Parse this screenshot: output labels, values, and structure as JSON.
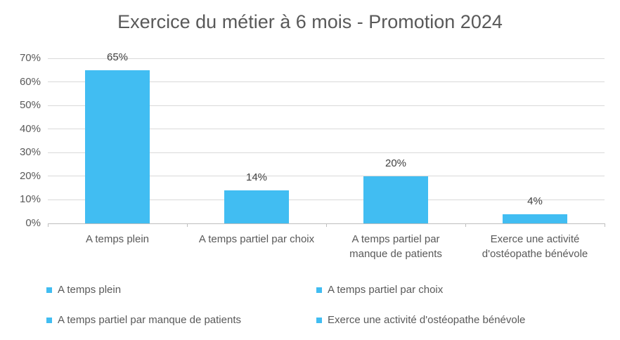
{
  "chart_data": {
    "type": "bar",
    "title": "Exercice du métier à 6 mois - Promotion 2024",
    "categories": [
      "A temps plein",
      "A temps partiel par choix",
      "A temps partiel par manque de patients",
      "Exerce une activité d'ostéopathe bénévole"
    ],
    "values": [
      65,
      14,
      20,
      4
    ],
    "value_labels": [
      "65%",
      "14%",
      "20%",
      "4%"
    ],
    "xlabel": "",
    "ylabel": "",
    "ylim": [
      0,
      70
    ],
    "yticks": [
      {
        "value": 0,
        "label": "0%"
      },
      {
        "value": 10,
        "label": "10%"
      },
      {
        "value": 20,
        "label": "20%"
      },
      {
        "value": 30,
        "label": "30%"
      },
      {
        "value": 40,
        "label": "40%"
      },
      {
        "value": 50,
        "label": "50%"
      },
      {
        "value": 60,
        "label": "60%"
      },
      {
        "value": 70,
        "label": "70%"
      }
    ],
    "grid": true,
    "legend_position": "bottom",
    "legend": [
      "A temps plein",
      "A temps partiel par choix",
      "A temps partiel par manque de patients",
      "Exerce une activité d'ostéopathe bénévole"
    ]
  },
  "colors": {
    "bar": "#41bdf2",
    "gridline": "#d9d9d9",
    "axis_line": "#bfbfbf",
    "title_text": "#595959",
    "axis_text": "#595959",
    "value_label_text": "#404040",
    "legend_text": "#595959",
    "background": "#ffffff"
  }
}
